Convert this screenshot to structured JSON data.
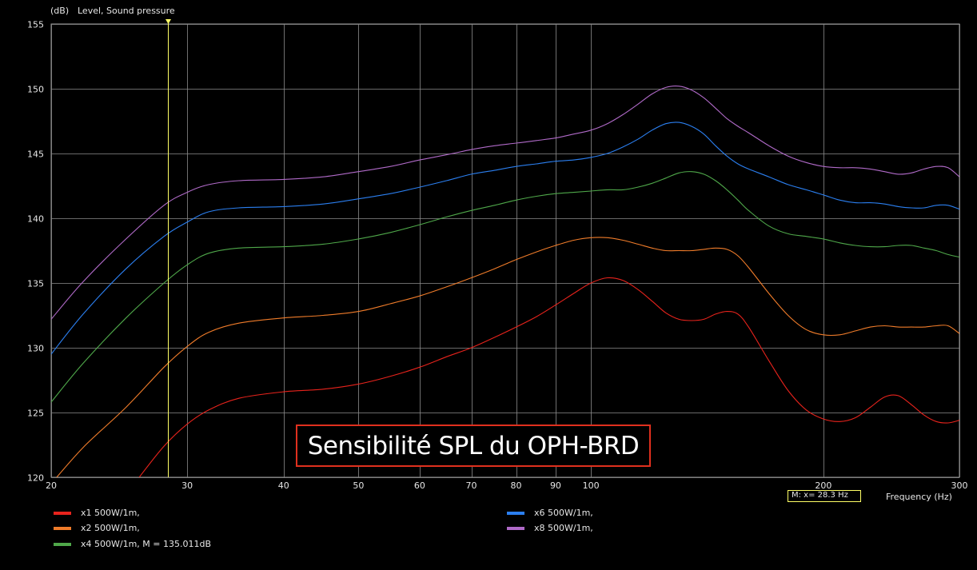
{
  "chart_data": {
    "type": "line",
    "title": "Level, Sound pressure",
    "ylabel_unit": "(dB)",
    "xlabel": "Frequency  (Hz)",
    "xscale": "log",
    "xlim": [
      20,
      300
    ],
    "ylim": [
      120,
      155
    ],
    "y_ticks": [
      120,
      125,
      130,
      135,
      140,
      145,
      150,
      155
    ],
    "x_ticks": [
      20,
      30,
      40,
      50,
      60,
      70,
      80,
      90,
      100,
      200,
      300
    ],
    "x_tick_labels": [
      "20",
      "30",
      "40",
      "50",
      "60",
      "70",
      "80",
      "90",
      "100",
      "200",
      "300"
    ],
    "grid": true,
    "cursor": {
      "x": 28.3,
      "label": "M:  x= 28.3 Hz",
      "color": "#ffff66"
    },
    "annotation": "Sensibilité SPL du OPH-BRD",
    "series": [
      {
        "name": "x1 500W/1m,",
        "color": "#e8231c",
        "x": [
          26,
          28,
          30,
          32,
          35,
          40,
          45,
          50,
          55,
          60,
          65,
          70,
          75,
          80,
          85,
          90,
          95,
          100,
          105,
          110,
          115,
          120,
          125,
          130,
          135,
          140,
          145,
          150,
          155,
          160,
          170,
          180,
          190,
          200,
          210,
          220,
          230,
          240,
          250,
          260,
          270,
          280,
          290,
          300
        ],
        "values": [
          120.0,
          122.4,
          124.1,
          125.2,
          126.1,
          126.6,
          126.8,
          127.2,
          127.8,
          128.5,
          129.3,
          130.0,
          130.8,
          131.6,
          132.4,
          133.3,
          134.2,
          135.0,
          135.4,
          135.2,
          134.5,
          133.6,
          132.7,
          132.2,
          132.1,
          132.2,
          132.6,
          132.8,
          132.6,
          131.6,
          129.0,
          126.7,
          125.2,
          124.5,
          124.3,
          124.6,
          125.4,
          126.2,
          126.3,
          125.6,
          124.8,
          124.3,
          124.2,
          124.4
        ]
      },
      {
        "name": "x2 500W/1m,",
        "color": "#f07c2a",
        "x": [
          20,
          22,
          25,
          28,
          30,
          32,
          35,
          40,
          45,
          50,
          55,
          60,
          65,
          70,
          75,
          80,
          85,
          90,
          95,
          100,
          105,
          110,
          115,
          120,
          125,
          130,
          135,
          140,
          145,
          150,
          155,
          160,
          170,
          180,
          190,
          200,
          210,
          220,
          230,
          240,
          250,
          260,
          270,
          280,
          290,
          300
        ],
        "values": [
          119.5,
          122.3,
          125.4,
          128.5,
          130.1,
          131.2,
          131.9,
          132.3,
          132.5,
          132.8,
          133.4,
          134.0,
          134.7,
          135.4,
          136.1,
          136.8,
          137.4,
          137.9,
          138.3,
          138.5,
          138.5,
          138.3,
          138.0,
          137.7,
          137.5,
          137.5,
          137.5,
          137.6,
          137.7,
          137.6,
          137.1,
          136.2,
          134.2,
          132.5,
          131.4,
          131.0,
          131.0,
          131.3,
          131.6,
          131.7,
          131.6,
          131.6,
          131.6,
          131.7,
          131.7,
          131.1
        ]
      },
      {
        "name": "x4 500W/1m, M = 135.011dB",
        "color": "#4fa84a",
        "x": [
          20,
          22,
          25,
          28,
          30,
          32,
          35,
          40,
          45,
          50,
          55,
          60,
          65,
          70,
          75,
          80,
          85,
          90,
          95,
          100,
          105,
          110,
          115,
          120,
          125,
          130,
          135,
          140,
          145,
          150,
          155,
          160,
          170,
          180,
          190,
          200,
          210,
          220,
          230,
          240,
          250,
          260,
          270,
          280,
          290,
          300
        ],
        "values": [
          125.8,
          128.8,
          132.3,
          135.0,
          136.4,
          137.3,
          137.7,
          137.8,
          138.0,
          138.4,
          138.9,
          139.5,
          140.1,
          140.6,
          141.0,
          141.4,
          141.7,
          141.9,
          142.0,
          142.1,
          142.2,
          142.2,
          142.4,
          142.7,
          143.1,
          143.5,
          143.6,
          143.4,
          142.9,
          142.2,
          141.4,
          140.6,
          139.4,
          138.8,
          138.6,
          138.4,
          138.1,
          137.9,
          137.8,
          137.8,
          137.9,
          137.9,
          137.7,
          137.5,
          137.2,
          137.0
        ]
      },
      {
        "name": "x6 500W/1m,",
        "color": "#2b7ff0",
        "x": [
          20,
          22,
          25,
          28,
          30,
          32,
          35,
          40,
          45,
          50,
          55,
          60,
          65,
          70,
          75,
          80,
          85,
          90,
          95,
          100,
          105,
          110,
          115,
          120,
          125,
          130,
          135,
          140,
          145,
          150,
          155,
          160,
          170,
          180,
          190,
          200,
          210,
          220,
          230,
          240,
          250,
          260,
          270,
          280,
          290,
          300
        ],
        "values": [
          129.5,
          132.6,
          136.1,
          138.6,
          139.7,
          140.5,
          140.8,
          140.9,
          141.1,
          141.5,
          141.9,
          142.4,
          142.9,
          143.4,
          143.7,
          144.0,
          144.2,
          144.4,
          144.5,
          144.7,
          145.0,
          145.5,
          146.1,
          146.8,
          147.3,
          147.4,
          147.1,
          146.5,
          145.6,
          144.8,
          144.2,
          143.8,
          143.2,
          142.6,
          142.2,
          141.8,
          141.4,
          141.2,
          141.2,
          141.1,
          140.9,
          140.8,
          140.8,
          141.0,
          141.0,
          140.7
        ]
      },
      {
        "name": "x8 500W/1m,",
        "color": "#b06ac8",
        "x": [
          20,
          22,
          25,
          28,
          30,
          32,
          35,
          40,
          45,
          50,
          55,
          60,
          65,
          70,
          75,
          80,
          85,
          90,
          95,
          100,
          105,
          110,
          115,
          120,
          125,
          130,
          135,
          140,
          145,
          150,
          155,
          160,
          170,
          180,
          190,
          200,
          210,
          220,
          230,
          240,
          250,
          260,
          270,
          280,
          290,
          300
        ],
        "values": [
          132.2,
          135.1,
          138.4,
          141.0,
          142.0,
          142.6,
          142.9,
          143.0,
          143.2,
          143.6,
          144.0,
          144.5,
          144.9,
          145.3,
          145.6,
          145.8,
          146.0,
          146.2,
          146.5,
          146.8,
          147.3,
          148.0,
          148.8,
          149.6,
          150.1,
          150.2,
          149.9,
          149.3,
          148.5,
          147.7,
          147.1,
          146.6,
          145.6,
          144.8,
          144.3,
          144.0,
          143.9,
          143.9,
          143.8,
          143.6,
          143.4,
          143.5,
          143.8,
          144.0,
          143.9,
          143.2
        ]
      }
    ]
  }
}
